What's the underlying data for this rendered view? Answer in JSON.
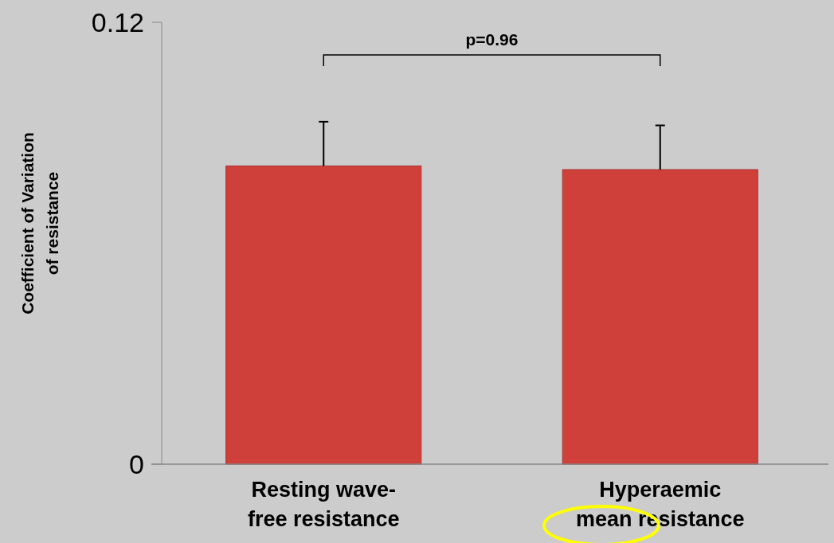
{
  "chart_data": {
    "type": "bar",
    "ylabel": "Coefficient of Variation of resistance",
    "categories": [
      "Resting wave-free resistance",
      "Hyperaemic mean resistance"
    ],
    "values": [
      0.081,
      0.08
    ],
    "errors": [
      [
        0.081,
        0.093
      ],
      [
        0.08,
        0.092
      ]
    ],
    "color": "#d0403a",
    "ylim": [
      0,
      0.12
    ],
    "yticks": [
      0,
      0.12
    ],
    "annotations": [
      "p=0.96"
    ]
  }
}
